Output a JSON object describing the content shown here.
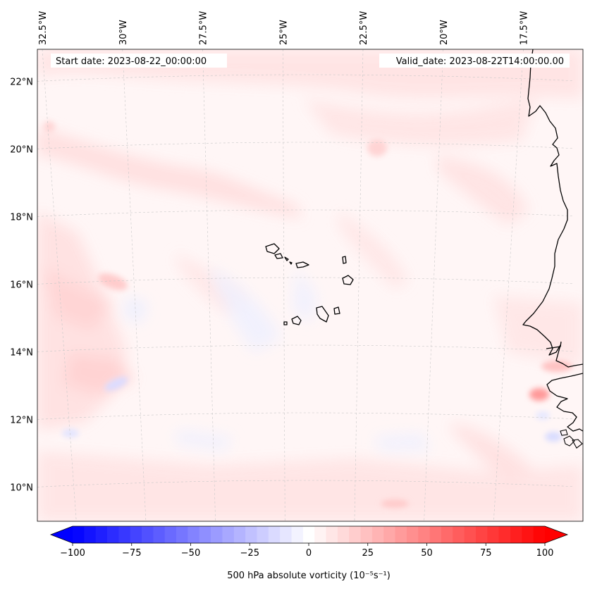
{
  "header": {
    "start_date": "Start date: 2023-08-22_00:00:00",
    "valid_date": "Valid_date: 2023-08-22T14:00:00.00"
  },
  "lon_labels": [
    {
      "text": "32.5°W",
      "lon": -32.5
    },
    {
      "text": "30°W",
      "lon": -30
    },
    {
      "text": "27.5°W",
      "lon": -27.5
    },
    {
      "text": "25°W",
      "lon": -25
    },
    {
      "text": "22.5°W",
      "lon": -22.5
    },
    {
      "text": "20°W",
      "lon": -20
    },
    {
      "text": "17.5°W",
      "lon": -17.5
    }
  ],
  "lat_labels": [
    {
      "text": "22°N",
      "lat": 22
    },
    {
      "text": "20°N",
      "lat": 20
    },
    {
      "text": "18°N",
      "lat": 18
    },
    {
      "text": "16°N",
      "lat": 16
    },
    {
      "text": "14°N",
      "lat": 14
    },
    {
      "text": "12°N",
      "lat": 12
    },
    {
      "text": "10°N",
      "lat": 10
    }
  ],
  "colorbar": {
    "label": "500 hPa absolute vorticity (10⁻⁵s⁻¹)",
    "min": -100,
    "max": 100,
    "ticks": [
      {
        "value": -100,
        "text": "−100"
      },
      {
        "value": -75,
        "text": "−75"
      },
      {
        "value": -50,
        "text": "−50"
      },
      {
        "value": -25,
        "text": "−25"
      },
      {
        "value": 0,
        "text": "0"
      },
      {
        "value": 25,
        "text": "25"
      },
      {
        "value": 50,
        "text": "50"
      },
      {
        "value": 75,
        "text": "75"
      },
      {
        "value": 100,
        "text": "100"
      }
    ],
    "colors": {
      "low": "#0000ff",
      "mid": "#ffffff",
      "high": "#ff0000"
    },
    "levels": 41
  },
  "colors": {
    "coast": "#000000",
    "grid": "#c8c8c8",
    "background_field": "#fff6f6"
  }
}
